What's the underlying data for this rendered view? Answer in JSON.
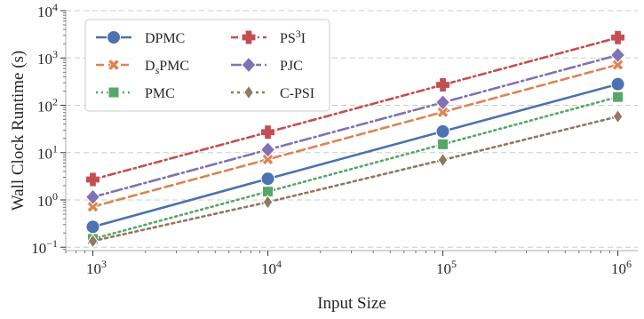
{
  "chart_data": {
    "type": "line",
    "x": [
      1000,
      10000,
      100000,
      1000000
    ],
    "xlabel": "Input Size",
    "ylabel": "Wall Clock Runtime (s)",
    "xscale": "log",
    "yscale": "log",
    "xlim": [
      700,
      1300000
    ],
    "ylim": [
      0.085,
      10000
    ],
    "grid": "y-major dashed",
    "legend_placement": "top-left",
    "x_ticks": [
      {
        "value": 1000,
        "base": "10",
        "exp": "3"
      },
      {
        "value": 10000,
        "base": "10",
        "exp": "4"
      },
      {
        "value": 100000,
        "base": "10",
        "exp": "5"
      },
      {
        "value": 1000000,
        "base": "10",
        "exp": "6"
      }
    ],
    "y_ticks": [
      {
        "value": 0.1,
        "base": "10",
        "exp": "−1"
      },
      {
        "value": 1,
        "base": "10",
        "exp": "0"
      },
      {
        "value": 10,
        "base": "10",
        "exp": "1"
      },
      {
        "value": 100,
        "base": "10",
        "exp": "2"
      },
      {
        "value": 1000,
        "base": "10",
        "exp": "3"
      },
      {
        "value": 10000,
        "base": "10",
        "exp": "4"
      }
    ],
    "series": [
      {
        "name": "DPMC",
        "label_main": "DPMC",
        "label_sup": "",
        "label_tail": "",
        "label_sub": "",
        "color": "#4c72b0",
        "dash": "",
        "marker": "circle",
        "values": [
          0.27,
          2.8,
          28,
          280
        ]
      },
      {
        "name": "DsPMC",
        "label_main": "D",
        "label_sub": "s",
        "label_tail": "PMC",
        "label_sup": "",
        "color": "#dd8452",
        "dash": "9,5",
        "marker": "x",
        "values": [
          0.72,
          7.2,
          72,
          720
        ]
      },
      {
        "name": "PMC",
        "label_main": "PMC",
        "label_sup": "",
        "label_tail": "",
        "label_sub": "",
        "color": "#55a868",
        "dash": "2,4",
        "marker": "square",
        "values": [
          0.15,
          1.5,
          15,
          150
        ]
      },
      {
        "name": "PS3I",
        "label_main": "PS",
        "label_sup": "3",
        "label_tail": "I",
        "label_sub": "",
        "color": "#c44e52",
        "dash": "8,4,2,4",
        "marker": "plus",
        "values": [
          2.7,
          27,
          270,
          2700
        ]
      },
      {
        "name": "PJC",
        "label_main": "PJC",
        "label_sup": "",
        "label_tail": "",
        "label_sub": "",
        "color": "#8172b3",
        "dash": "12,4,2,4",
        "marker": "diamond",
        "values": [
          1.15,
          11.5,
          115,
          1150
        ]
      },
      {
        "name": "C-PSI",
        "label_main": "C-PSI",
        "label_sup": "",
        "label_tail": "",
        "label_sub": "",
        "color": "#937860",
        "dash": "3,4",
        "marker": "thin-diamond",
        "values": [
          0.135,
          0.9,
          7,
          58
        ]
      }
    ]
  }
}
